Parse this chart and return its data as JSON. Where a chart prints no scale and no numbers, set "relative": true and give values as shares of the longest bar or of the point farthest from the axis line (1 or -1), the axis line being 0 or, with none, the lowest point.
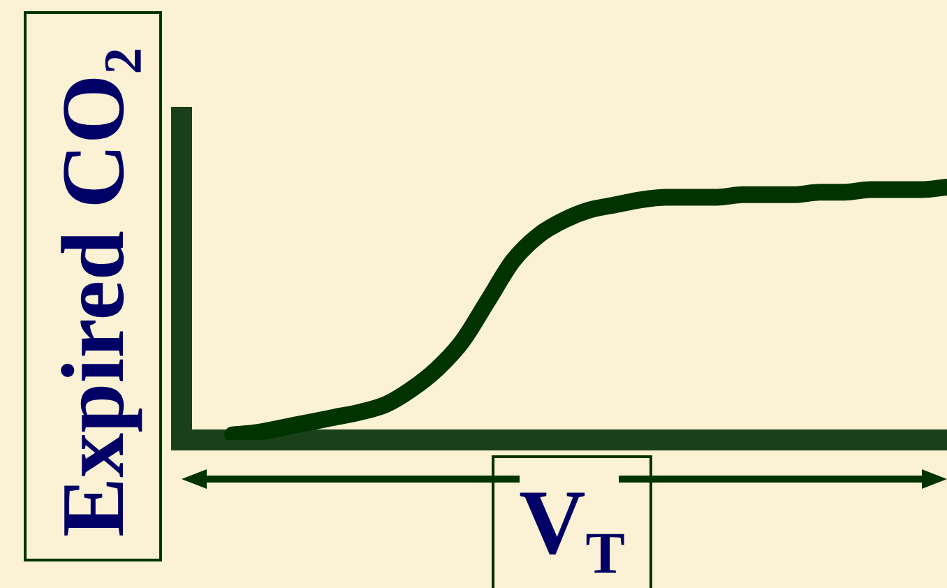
{
  "chart_data": {
    "type": "line",
    "relative": true,
    "xlabel": "V$_{T}$",
    "ylabel": "Expired CO₂",
    "categories": [
      null,
      null,
      null,
      null,
      null,
      null,
      null,
      null,
      null,
      null,
      null,
      null,
      null,
      null,
      null,
      null,
      null,
      null,
      null,
      null,
      null,
      null,
      null,
      null,
      null,
      null,
      null,
      null,
      null,
      null,
      null
    ],
    "series": [
      {
        "color": "#003300",
        "values": [
          null,
          null,
          0.02,
          0.03,
          0.05,
          0.07,
          0.09,
          0.11,
          0.14,
          0.2,
          0.28,
          0.39,
          0.55,
          0.71,
          0.81,
          0.87,
          0.91,
          0.93,
          0.95,
          0.96,
          0.96,
          0.96,
          0.97,
          0.97,
          0.97,
          0.98,
          0.98,
          0.99,
          0.99,
          0.99,
          1
        ]
      }
    ],
    "marker": "none",
    "line_style": "solid",
    "legend": false
  }
}
